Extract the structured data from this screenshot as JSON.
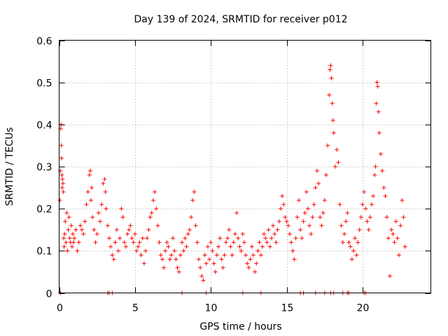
{
  "chart_data": {
    "type": "scatter",
    "title": "Day 139 of 2024, SRMTID for receiver p012",
    "xlabel": "GPS time / hours",
    "ylabel": "SRMTID / TECUs",
    "xlim": [
      0,
      24.5
    ],
    "ylim": [
      0,
      0.6
    ],
    "xticks": [
      0,
      5,
      10,
      15,
      20
    ],
    "xtick_labels": [
      "0",
      "5",
      "10",
      "15",
      "20"
    ],
    "yticks": [
      0,
      0.1,
      0.2,
      0.3,
      0.4,
      0.5,
      0.6
    ],
    "ytick_labels": [
      "0",
      "0.1",
      "0.2",
      "0.3",
      "0.4",
      "0.5",
      "0.6"
    ],
    "grid": true,
    "marker": "+",
    "color": "#ff0000",
    "series": [
      {
        "name": "SRMTID",
        "x": [
          0.05,
          0.08,
          0.1,
          0.12,
          0.14,
          0.16,
          0.18,
          0.2,
          0.22,
          0.25,
          0.28,
          0.3,
          0.33,
          0.36,
          0.4,
          0.45,
          0.5,
          0.55,
          0.6,
          0.65,
          0.7,
          0.75,
          0.8,
          0.85,
          0.9,
          0.95,
          1.0,
          1.1,
          1.2,
          1.3,
          1.4,
          1.5,
          1.6,
          1.7,
          1.8,
          1.9,
          2.0,
          2.05,
          2.1,
          2.15,
          2.2,
          2.3,
          2.4,
          2.5,
          2.6,
          2.7,
          2.8,
          2.9,
          3.0,
          3.05,
          3.1,
          3.2,
          3.3,
          3.4,
          3.5,
          3.6,
          3.7,
          3.8,
          3.9,
          4.0,
          4.1,
          4.2,
          4.3,
          4.4,
          4.5,
          4.6,
          4.7,
          4.8,
          4.9,
          5.0,
          5.1,
          5.2,
          5.3,
          5.4,
          5.5,
          5.6,
          5.7,
          5.8,
          5.9,
          6.0,
          6.1,
          6.2,
          6.3,
          6.4,
          6.5,
          6.6,
          6.7,
          6.8,
          6.9,
          7.0,
          7.1,
          7.2,
          7.3,
          7.4,
          7.5,
          7.6,
          7.7,
          7.8,
          7.9,
          8.0,
          8.1,
          8.2,
          8.3,
          8.4,
          8.5,
          8.6,
          8.7,
          8.8,
          8.9,
          9.0,
          9.1,
          9.2,
          9.3,
          9.4,
          9.5,
          9.6,
          9.7,
          9.8,
          9.9,
          10.0,
          10.1,
          10.2,
          10.3,
          10.4,
          10.5,
          10.6,
          10.7,
          10.8,
          10.9,
          11.0,
          11.1,
          11.2,
          11.3,
          11.4,
          11.5,
          11.6,
          11.7,
          11.8,
          11.9,
          12.0,
          12.1,
          12.2,
          12.3,
          12.4,
          12.5,
          12.6,
          12.7,
          12.8,
          12.9,
          13.0,
          13.1,
          13.2,
          13.3,
          13.4,
          13.5,
          13.6,
          13.7,
          13.8,
          13.9,
          14.0,
          14.1,
          14.2,
          14.3,
          14.4,
          14.5,
          14.6,
          14.7,
          14.8,
          14.9,
          15.0,
          15.1,
          15.2,
          15.3,
          15.4,
          15.5,
          15.6,
          15.7,
          15.8,
          15.9,
          16.0,
          16.1,
          16.2,
          16.3,
          16.4,
          16.5,
          16.6,
          16.7,
          16.8,
          16.9,
          17.0,
          17.1,
          17.2,
          17.3,
          17.4,
          17.5,
          17.6,
          17.7,
          17.8,
          17.85,
          17.9,
          17.95,
          18.0,
          18.05,
          18.1,
          18.2,
          18.3,
          18.4,
          18.5,
          18.6,
          18.7,
          18.8,
          18.9,
          19.0,
          19.1,
          19.2,
          19.3,
          19.4,
          19.5,
          19.6,
          19.7,
          19.8,
          19.9,
          20.0,
          20.1,
          20.2,
          20.3,
          20.4,
          20.5,
          20.6,
          20.7,
          20.8,
          20.85,
          20.9,
          20.95,
          21.0,
          21.05,
          21.1,
          21.2,
          21.3,
          21.4,
          21.5,
          21.6,
          21.7,
          21.8,
          21.9,
          22.0,
          22.1,
          22.2,
          22.3,
          22.4,
          22.5,
          22.6,
          22.7,
          22.8,
          0.08,
          3.2,
          3.3,
          3.5,
          8.1,
          9.7,
          12.1,
          13.3,
          15.9,
          16.1,
          16.9,
          17.5,
          17.9,
          18.1,
          18.7,
          19.0,
          19.1,
          20.1,
          20.2
        ],
        "y": [
          0.22,
          0.29,
          0.39,
          0.4,
          0.35,
          0.32,
          0.28,
          0.25,
          0.27,
          0.26,
          0.24,
          0.13,
          0.11,
          0.14,
          0.17,
          0.12,
          0.19,
          0.1,
          0.15,
          0.18,
          0.13,
          0.12,
          0.16,
          0.11,
          0.14,
          0.12,
          0.13,
          0.15,
          0.1,
          0.12,
          0.16,
          0.15,
          0.14,
          0.17,
          0.21,
          0.24,
          0.28,
          0.29,
          0.22,
          0.25,
          0.18,
          0.15,
          0.12,
          0.14,
          0.19,
          0.17,
          0.21,
          0.26,
          0.27,
          0.24,
          0.2,
          0.16,
          0.13,
          0.11,
          0.09,
          0.08,
          0.12,
          0.15,
          0.1,
          0.13,
          0.2,
          0.18,
          0.12,
          0.11,
          0.14,
          0.15,
          0.16,
          0.13,
          0.12,
          0.14,
          0.1,
          0.11,
          0.12,
          0.09,
          0.13,
          0.07,
          0.1,
          0.13,
          0.15,
          0.18,
          0.19,
          0.22,
          0.24,
          0.2,
          0.16,
          0.12,
          0.09,
          0.08,
          0.06,
          0.1,
          0.12,
          0.11,
          0.08,
          0.09,
          0.13,
          0.1,
          0.08,
          0.06,
          0.05,
          0.09,
          0.12,
          0.1,
          0.13,
          0.11,
          0.14,
          0.15,
          0.18,
          0.22,
          0.24,
          0.16,
          0.12,
          0.08,
          0.06,
          0.04,
          0.03,
          0.09,
          0.07,
          0.11,
          0.08,
          0.12,
          0.1,
          0.07,
          0.05,
          0.09,
          0.11,
          0.13,
          0.08,
          0.06,
          0.09,
          0.12,
          0.13,
          0.15,
          0.11,
          0.09,
          0.12,
          0.14,
          0.19,
          0.13,
          0.11,
          0.1,
          0.14,
          0.12,
          0.09,
          0.07,
          0.06,
          0.08,
          0.11,
          0.09,
          0.05,
          0.07,
          0.1,
          0.12,
          0.09,
          0.11,
          0.14,
          0.13,
          0.12,
          0.15,
          0.11,
          0.13,
          0.16,
          0.14,
          0.12,
          0.15,
          0.17,
          0.2,
          0.23,
          0.21,
          0.18,
          0.17,
          0.16,
          0.14,
          0.12,
          0.1,
          0.08,
          0.13,
          0.18,
          0.22,
          0.15,
          0.13,
          0.17,
          0.19,
          0.24,
          0.2,
          0.16,
          0.14,
          0.18,
          0.21,
          0.25,
          0.29,
          0.26,
          0.18,
          0.16,
          0.19,
          0.22,
          0.28,
          0.35,
          0.47,
          0.53,
          0.54,
          0.51,
          0.45,
          0.41,
          0.38,
          0.3,
          0.34,
          0.31,
          0.21,
          0.16,
          0.12,
          0.14,
          0.17,
          0.19,
          0.12,
          0.11,
          0.08,
          0.1,
          0.13,
          0.09,
          0.12,
          0.15,
          0.18,
          0.21,
          0.24,
          0.2,
          0.17,
          0.15,
          0.18,
          0.21,
          0.23,
          0.28,
          0.3,
          0.45,
          0.5,
          0.49,
          0.43,
          0.38,
          0.33,
          0.29,
          0.25,
          0.23,
          0.18,
          0.13,
          0.04,
          0.15,
          0.14,
          0.12,
          0.17,
          0.13,
          0.09,
          0.16,
          0.22,
          0.18,
          0.11,
          0.0,
          0.0,
          0.0,
          0.0,
          0.0,
          0.0,
          0.0,
          0.0,
          0.0,
          0.0,
          0.0,
          0.0,
          0.0,
          0.0,
          0.0,
          0.0,
          0.0,
          0.0,
          0.0
        ]
      }
    ]
  }
}
